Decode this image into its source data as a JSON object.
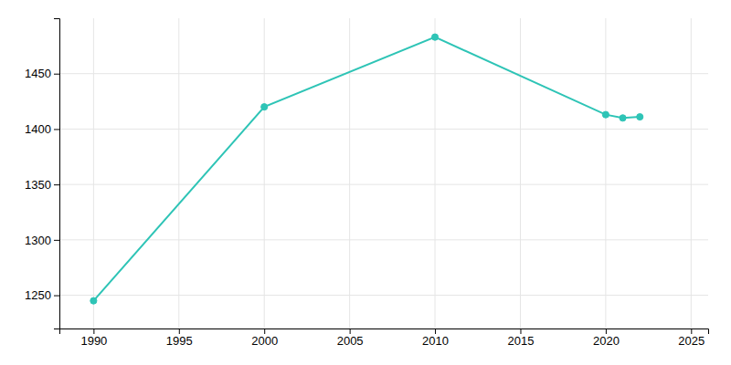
{
  "chart_data": {
    "type": "line",
    "x": [
      1990,
      2000,
      2010,
      2020,
      2021,
      2022
    ],
    "values": [
      1245,
      1420,
      1483,
      1413,
      1410,
      1411
    ],
    "color": "#2EC4B6",
    "marker": "circle",
    "xlim": [
      1988,
      2026
    ],
    "ylim": [
      1220,
      1500
    ],
    "xticks": [
      1990,
      1995,
      2000,
      2005,
      2010,
      2015,
      2020,
      2025
    ],
    "yticks": [
      1250,
      1300,
      1350,
      1400,
      1450
    ],
    "grid": true
  }
}
